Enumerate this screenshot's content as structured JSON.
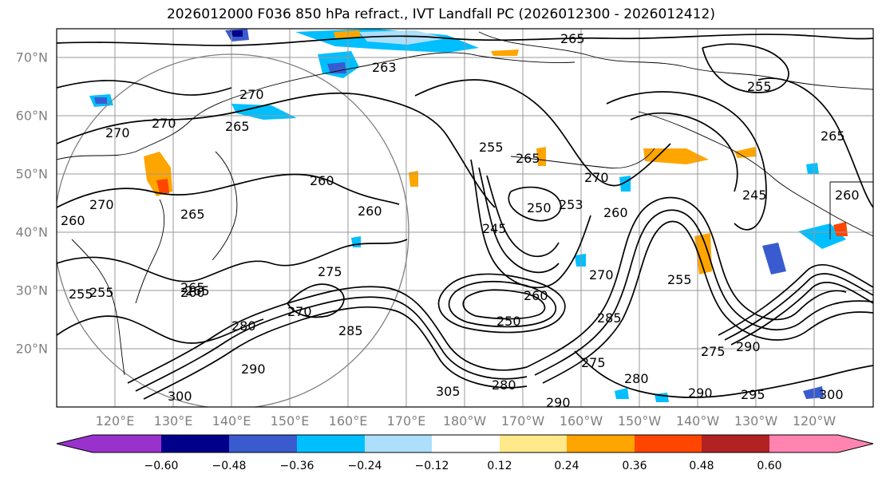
{
  "title": "2026012000 F036 850 hPa refract., IVT Landfall PC (2026012300 - 2026012412)",
  "lat_labels": [
    "70°N",
    "60°N",
    "50°N",
    "40°N",
    "30°N",
    "20°N"
  ],
  "lon_labels": [
    "120°E",
    "130°E",
    "140°E",
    "150°E",
    "160°E",
    "170°E",
    "180°W",
    "170°W",
    "160°W",
    "150°W",
    "140°W",
    "130°W",
    "120°W"
  ],
  "colorbar": {
    "ticks": [
      "−0.60",
      "−0.48",
      "−0.36",
      "−0.24",
      "−0.12",
      "0.12",
      "0.24",
      "0.36",
      "0.48",
      "0.60"
    ],
    "colors": [
      "#9932CC",
      "#00008B",
      "#3A5BCF",
      "#00BFFF",
      "#ADDFFA",
      "#FFFFFF",
      "#FFE98A",
      "#FFA500",
      "#FF4500",
      "#B22222",
      "#FF85B0"
    ]
  },
  "contour_labels": [
    "265",
    "270",
    "270",
    "265",
    "263",
    "255",
    "265",
    "270",
    "270",
    "265",
    "260",
    "260",
    "255",
    "265",
    "270",
    "260",
    "245",
    "260",
    "250",
    "253",
    "260",
    "245",
    "260",
    "265",
    "275",
    "270",
    "265",
    "255",
    "260",
    "255",
    "250",
    "270",
    "285",
    "255",
    "280",
    "285",
    "280",
    "290",
    "290",
    "295",
    "300",
    "290",
    "275",
    "275",
    "280",
    "290",
    "300",
    "305"
  ],
  "grid": {
    "lat_lines": 7,
    "lon_lines": 13
  }
}
